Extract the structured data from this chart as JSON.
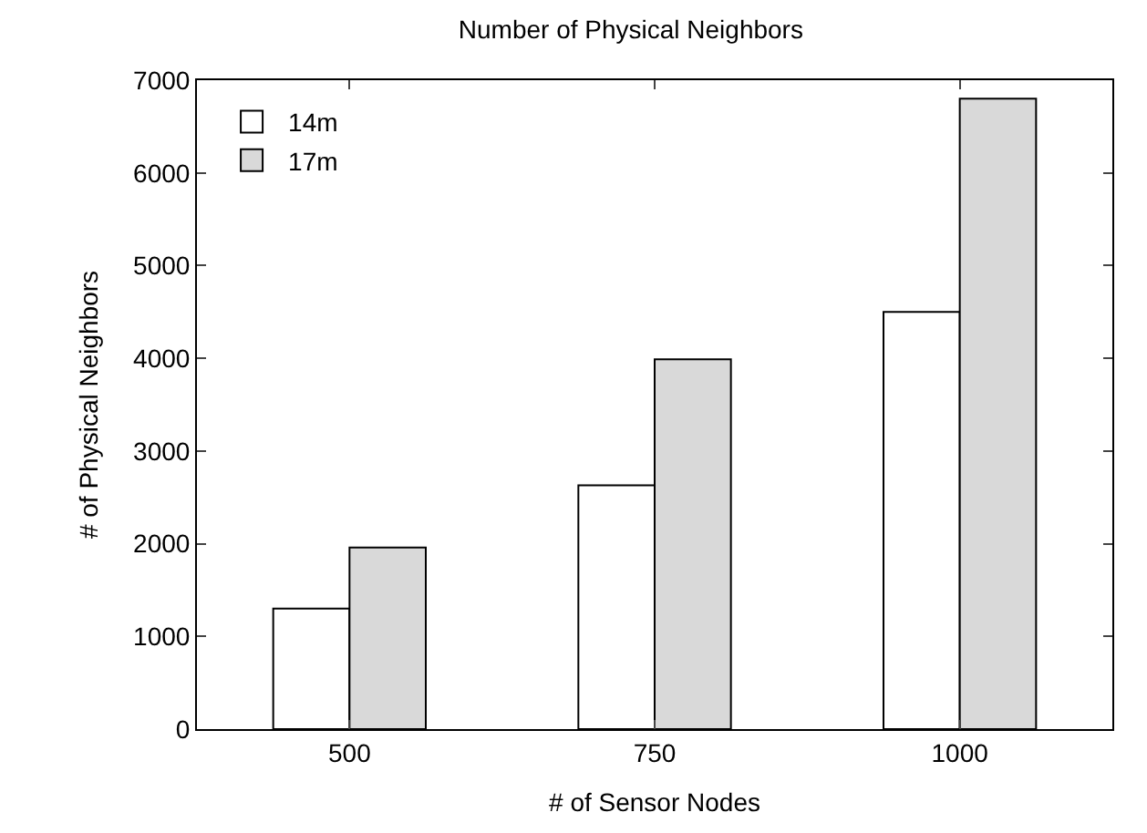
{
  "chart_data": {
    "type": "bar",
    "title": "Number of Physical Neighbors",
    "xlabel": "# of Sensor Nodes",
    "ylabel": "# of Physical Neighbors",
    "categories": [
      "500",
      "750",
      "1000"
    ],
    "series": [
      {
        "name": "14m",
        "color": "#ffffff",
        "values": [
          1300,
          2630,
          4500
        ]
      },
      {
        "name": "17m",
        "color": "#d9d9d9",
        "values": [
          1960,
          3990,
          6800
        ]
      }
    ],
    "ylim": [
      0,
      7000
    ],
    "yticks": [
      0,
      1000,
      2000,
      3000,
      4000,
      5000,
      6000,
      7000
    ],
    "grid": false,
    "legend": "top left"
  }
}
